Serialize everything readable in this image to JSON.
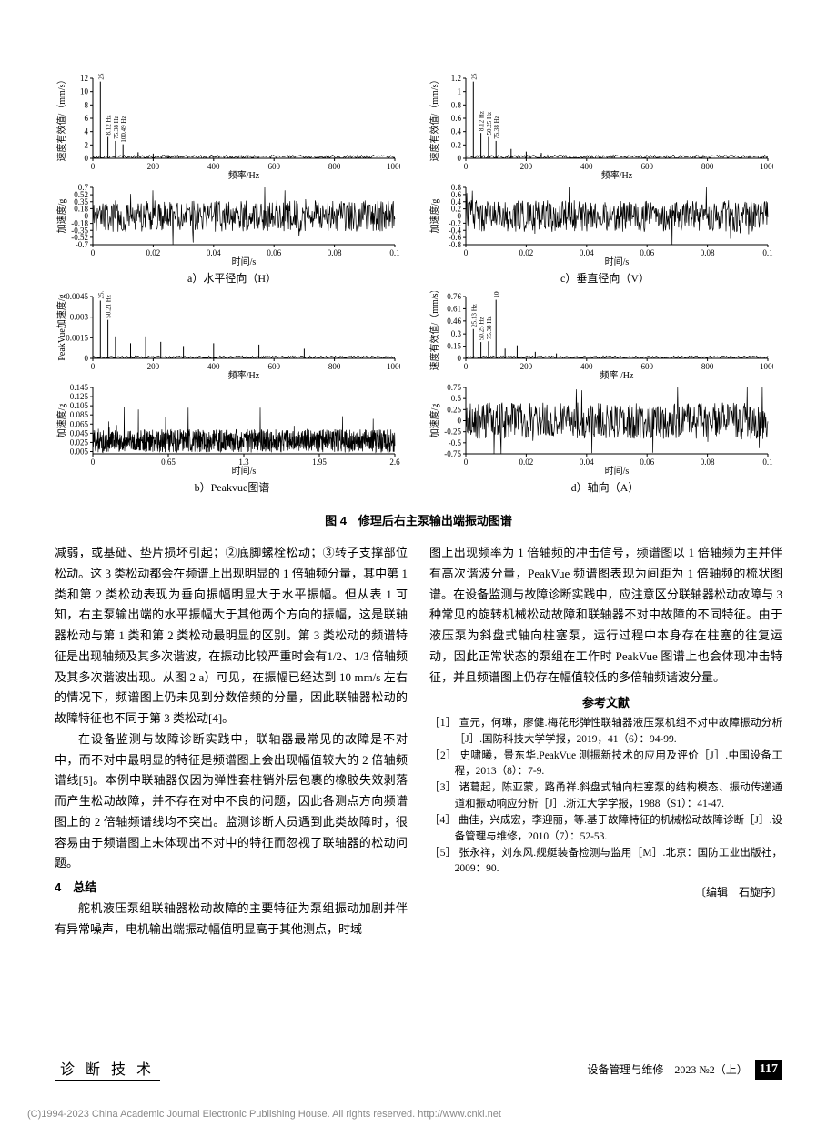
{
  "figure": {
    "caption": "图 4　修理后右主泵输出端振动图谱",
    "labels": {
      "a": "a）水平径向（H）",
      "b": "b）Peakvue图谱",
      "c": "c）垂直径向（V）",
      "d": "d）轴向（A）"
    },
    "axis_text": {
      "freq": "频率/Hz",
      "time": "时间/s",
      "vel": "速度有效值/（mm/s）",
      "acc": "加速度/g",
      "peakvue_acc": "PeakVue加速度/g"
    },
    "peaks": {
      "a_top": [
        "25.13 Hz",
        "8.12 Hz",
        "75.38 Hz",
        "100.49 Hz"
      ],
      "c_top": [
        "25.13 Hz",
        "8.12 Hz",
        "50.25 Hz",
        "75.38 Hz"
      ],
      "b_top": [
        "25.09 Hz",
        "50.21 Hz"
      ],
      "d_top": [
        "25.13 Hz",
        "50.25 Hz",
        "75.38 Hz",
        "100.49 Hz"
      ]
    },
    "chart_style": {
      "line_color": "#000000",
      "background_color": "#ffffff",
      "axis_color": "#000000",
      "line_width": 0.7,
      "tick_fontsize": 9,
      "label_fontsize": 10
    },
    "panels": {
      "a_top": {
        "type": "spectrum",
        "xlim": [
          0,
          1000
        ],
        "xticks": [
          0,
          200,
          400,
          600,
          800,
          1000
        ],
        "ylim": [
          0,
          12
        ],
        "yticks": [
          0,
          2,
          4,
          6,
          8,
          10,
          12
        ],
        "xlabel": "频率/Hz",
        "ylabel": "速度有效值/（mm/s）",
        "peak_x": [
          25,
          50,
          75,
          100,
          150,
          200,
          250
        ],
        "peak_y": [
          11.5,
          3.2,
          2.6,
          2.1,
          0.9,
          0.7,
          0.5
        ]
      },
      "a_bot": {
        "type": "waveform",
        "xlim": [
          0,
          0.1
        ],
        "xticks": [
          0,
          0.02,
          0.04,
          0.06,
          0.08,
          0.1
        ],
        "ylim": [
          -0.7,
          0.7
        ],
        "yticks": [
          -0.7,
          -0.52,
          -0.35,
          -0.18,
          0,
          0.18,
          0.35,
          0.52,
          0.7
        ],
        "xlabel": "时间/s",
        "ylabel": "加速度/g"
      },
      "b_top": {
        "type": "spectrum",
        "xlim": [
          0,
          1000
        ],
        "xticks": [
          0,
          200,
          400,
          600,
          800,
          1000
        ],
        "ylim": [
          0,
          0.0045
        ],
        "yticks": [
          0,
          0.0015,
          0.003,
          0.0045
        ],
        "xlabel": "频率/Hz",
        "ylabel": "PeakVue加速度/g",
        "peak_x": [
          25,
          50,
          75,
          125,
          175,
          225,
          300,
          400,
          550,
          700
        ],
        "peak_y": [
          0.0042,
          0.0028,
          0.0016,
          0.0011,
          0.0016,
          0.0012,
          0.0009,
          0.0011,
          0.001,
          0.0007
        ]
      },
      "b_bot": {
        "type": "waveform_dense",
        "xlim": [
          0,
          2.6
        ],
        "xticks": [
          0,
          0.65,
          1.3,
          1.95,
          2.6
        ],
        "ylim": [
          0,
          0.145
        ],
        "yticks": [
          0.005,
          0.025,
          0.045,
          0.065,
          0.085,
          0.105,
          0.125,
          0.145
        ],
        "xlabel": "时间/s",
        "ylabel": "加速度/g"
      },
      "c_top": {
        "type": "spectrum",
        "xlim": [
          0,
          1000
        ],
        "xticks": [
          0,
          200,
          400,
          600,
          800,
          1000
        ],
        "ylim": [
          0,
          1.2
        ],
        "yticks": [
          0,
          0.2,
          0.4,
          0.6,
          0.8,
          1.0,
          1.2
        ],
        "xlabel": "频率/Hz",
        "ylabel": "速度有效值/（mm/s）",
        "peak_x": [
          25,
          50,
          75,
          100,
          150,
          200,
          250
        ],
        "peak_y": [
          1.15,
          0.38,
          0.32,
          0.26,
          0.14,
          0.1,
          0.08
        ]
      },
      "c_bot": {
        "type": "waveform",
        "xlim": [
          0,
          0.1
        ],
        "xticks": [
          0,
          0.02,
          0.04,
          0.06,
          0.08,
          0.1
        ],
        "ylim": [
          -0.8,
          0.8
        ],
        "yticks": [
          -0.8,
          -0.6,
          -0.4,
          -0.2,
          0,
          0.2,
          0.4,
          0.6,
          0.8
        ],
        "xlabel": "时间/s",
        "ylabel": "加速度/g"
      },
      "d_top": {
        "type": "spectrum",
        "xlim": [
          0,
          1000
        ],
        "xticks": [
          0,
          200,
          400,
          600,
          800,
          1000
        ],
        "ylim": [
          0,
          0.76
        ],
        "yticks": [
          0,
          0.15,
          0.3,
          0.46,
          0.61,
          0.76
        ],
        "xlabel": "频率 /Hz",
        "ylabel": "速度有效值/（mm/s）",
        "peak_x": [
          25,
          50,
          75,
          100,
          130,
          170,
          230,
          300
        ],
        "peak_y": [
          0.36,
          0.2,
          0.21,
          0.72,
          0.12,
          0.16,
          0.08,
          0.06
        ]
      },
      "d_bot": {
        "type": "waveform",
        "xlim": [
          0,
          0.1
        ],
        "xticks": [
          0,
          0.02,
          0.04,
          0.06,
          0.08,
          0.1
        ],
        "ylim": [
          -0.75,
          0.75
        ],
        "yticks": [
          -0.75,
          -0.5,
          -0.25,
          0,
          0.25,
          0.5,
          0.75
        ],
        "xlabel": "时间/s",
        "ylabel": "加速度/g"
      }
    }
  },
  "body": {
    "left": {
      "p1": "减弱，或基础、垫片损坏引起；②底脚螺栓松动；③转子支撑部位松动。这 3 类松动都会在频谱上出现明显的 1 倍轴频分量，其中第 1 类和第 2 类松动表现为垂向振幅明显大于水平振幅。但从表 1 可知，右主泵输出端的水平振幅大于其他两个方向的振幅，这是联轴器松动与第 1 类和第 2 类松动最明显的区别。第 3 类松动的频谱特征是出现轴频及其多次谐波，在振动比较严重时会有1/2、1/3 倍轴频及其多次谐波出现。从图 2 a）可见，在振幅已经达到 10 mm/s 左右的情况下，频谱图上仍未见到分数倍频的分量，因此联轴器松动的故障特征也不同于第 3 类松动[4]。",
      "p2": "在设备监测与故障诊断实践中，联轴器最常见的故障是不对中，而不对中最明显的特征是频谱图上会出现幅值较大的 2 倍轴频谱线[5]。本例中联轴器仅因为弹性套柱销外层包裹的橡胶失效剥落而产生松动故障，并不存在对中不良的问题，因此各测点方向频谱图上的 2 倍轴频谱线均不突出。监测诊断人员遇到此类故障时，很容易由于频谱图上未体现出不对中的特征而忽视了联轴器的松动问题。",
      "sec4": "4　总结",
      "p3": "舵机液压泵组联轴器松动故障的主要特征为泵组振动加剧并伴有异常噪声，电机输出端振动幅值明显高于其他测点，时域"
    },
    "right": {
      "p1": "图上出现频率为 1 倍轴频的冲击信号，频谱图以 1 倍轴频为主并伴有高次谐波分量，PeakVue 频谱图表现为间距为 1 倍轴频的梳状图谱。在设备监测与故障诊断实践中，应注意区分联轴器松动故障与 3 种常见的旋转机械松动故障和联轴器不对中故障的不同特征。由于液压泵为斜盘式轴向柱塞泵，运行过程中本身存在柱塞的往复运动，因此正常状态的泵组在工作时 PeakVue 图谱上也会体现冲击特征，并且频谱图上仍存在幅值较低的多倍轴频谐波分量。",
      "refs_heading": "参考文献",
      "refs": [
        "［1］ 宣元，何琳，廖健.梅花形弹性联轴器液压泵机组不对中故障振动分析［J］.国防科技大学学报，2019，41（6）：94-99.",
        "［2］ 史啸曦，景东华.PeakVue 测振新技术的应用及评价［J］.中国设备工程，2013（8）：7-9.",
        "［3］ 诸葛起，陈亚蒙，路甬祥.斜盘式轴向柱塞泵的结构模态、振动传递通道和振动响应分析［J］.浙江大学学报，1988（S1）：41-47.",
        "［4］ 曲佳，兴成宏，李迎丽，等.基于故障特征的机械松动故障诊断［J］.设备管理与维修，2010（7）：52-53.",
        "［5］ 张永祥，刘东风.舰艇装备检测与监用［M］.北京：国防工业出版社，2009：90."
      ],
      "editor": "〔编辑　石旋序〕"
    }
  },
  "footer": {
    "left": "诊 断 技 术",
    "right_text": "设备管理与维修　2023 №2（上）",
    "page": "117"
  },
  "copyright": "(C)1994-2023 China Academic Journal Electronic Publishing House. All rights reserved.    http://www.cnki.net"
}
